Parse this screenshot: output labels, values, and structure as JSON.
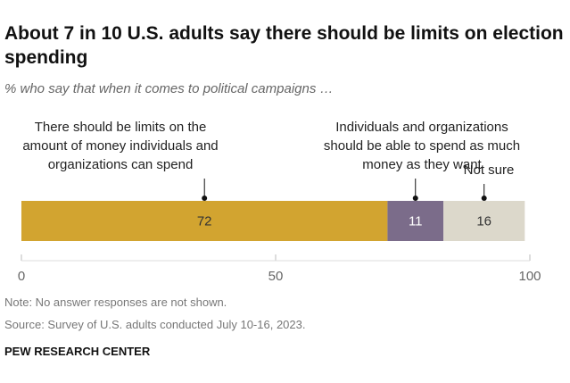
{
  "chart_data": {
    "type": "stacked-bar",
    "title": "About 7 in 10 U.S. adults say there should be limits on election spending",
    "subtitle": "% who say that when it comes to political campaigns …",
    "categories": [
      null
    ],
    "series": [
      {
        "name": "There should be limits on the amount of money individuals and organizations can spend",
        "color": "#d2a430",
        "values": [
          72
        ]
      },
      {
        "name": "Individuals and organizations should be able to spend as much money as they want",
        "color": "#7b6c8a",
        "values": [
          11
        ]
      },
      {
        "name": "Not sure",
        "color": "#dcd8cb",
        "values": [
          16
        ]
      }
    ],
    "xlim": [
      0,
      100
    ],
    "xticks": [
      0,
      50,
      100
    ],
    "note": "Note: No answer responses are not shown.",
    "source": "Source: Survey of U.S. adults conducted July 10-16, 2023.",
    "footer": "PEW RESEARCH CENTER"
  }
}
